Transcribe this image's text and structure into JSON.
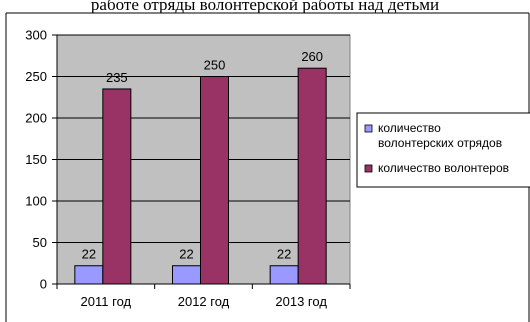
{
  "header": {
    "title": "работе отряды волонтерской работы над детьми"
  },
  "chart_data": {
    "type": "bar",
    "title": "",
    "xlabel": "",
    "ylabel": "",
    "categories": [
      "2011 год",
      "2012 год",
      "2013 год"
    ],
    "series": [
      {
        "name": "количество волонтерских отрядов",
        "values": [
          22,
          22,
          22
        ],
        "color": "#9999ff"
      },
      {
        "name": "количество волонтеров",
        "values": [
          235,
          250,
          260
        ],
        "color": "#993366"
      }
    ],
    "ylim": [
      0,
      300
    ],
    "yticks": [
      0,
      50,
      100,
      150,
      200,
      250,
      300
    ],
    "grid": true,
    "legend_position": "right",
    "plot_background": "#c0c0c0"
  }
}
